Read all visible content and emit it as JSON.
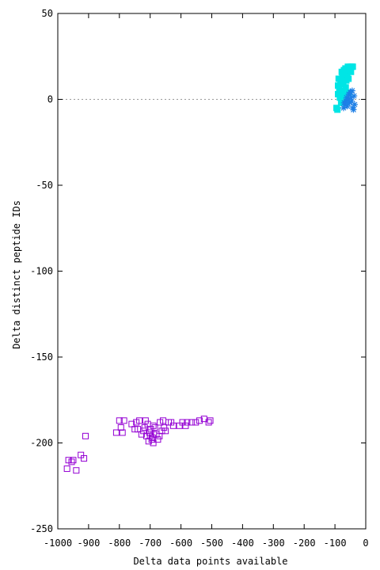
{
  "chart_data": {
    "type": "scatter",
    "title": "",
    "xlabel": "Delta data points available",
    "ylabel": "Delta distinct peptide IDs",
    "xlim": [
      -1000,
      0
    ],
    "ylim": [
      -250,
      50
    ],
    "xticks": [
      -1000,
      -900,
      -800,
      -700,
      -600,
      -500,
      -400,
      -300,
      -200,
      -100,
      0
    ],
    "yticks": [
      -250,
      -200,
      -150,
      -100,
      -50,
      0,
      50
    ],
    "grid": false,
    "zero_line": true,
    "legend": "none",
    "colors": {
      "open_squares": "#9400d3",
      "filled_squares": "#00e5e5",
      "stars": "#1e7fe6",
      "zero_line": "#999999",
      "axes": "#000000"
    },
    "series": [
      {
        "marker": "open-square",
        "points": [
          [
            -970,
            -215
          ],
          [
            -965,
            -210
          ],
          [
            -955,
            -211
          ],
          [
            -950,
            -210
          ],
          [
            -940,
            -216
          ],
          [
            -925,
            -207
          ],
          [
            -915,
            -209
          ],
          [
            -910,
            -196
          ],
          [
            -810,
            -194
          ],
          [
            -800,
            -187
          ],
          [
            -795,
            -191
          ],
          [
            -790,
            -194
          ],
          [
            -785,
            -187
          ],
          [
            -760,
            -189
          ],
          [
            -750,
            -192
          ],
          [
            -745,
            -188
          ],
          [
            -740,
            -192
          ],
          [
            -735,
            -187
          ],
          [
            -728,
            -195
          ],
          [
            -722,
            -193
          ],
          [
            -718,
            -191
          ],
          [
            -712,
            -196
          ],
          [
            -708,
            -189
          ],
          [
            -705,
            -199
          ],
          [
            -702,
            -194
          ],
          [
            -700,
            -196
          ],
          [
            -698,
            -192
          ],
          [
            -695,
            -198
          ],
          [
            -692,
            -197
          ],
          [
            -690,
            -200
          ],
          [
            -688,
            -195
          ],
          [
            -685,
            -191
          ],
          [
            -680,
            -195
          ],
          [
            -675,
            -198
          ],
          [
            -670,
            -196
          ],
          [
            -668,
            -188
          ],
          [
            -662,
            -193
          ],
          [
            -658,
            -187
          ],
          [
            -655,
            -191
          ],
          [
            -650,
            -193
          ],
          [
            -640,
            -188
          ],
          [
            -632,
            -188
          ],
          [
            -625,
            -190
          ],
          [
            -605,
            -190
          ],
          [
            -595,
            -188
          ],
          [
            -585,
            -190
          ],
          [
            -580,
            -188
          ],
          [
            -565,
            -188
          ],
          [
            -552,
            -188
          ],
          [
            -540,
            -187
          ],
          [
            -525,
            -186
          ],
          [
            -510,
            -188
          ],
          [
            -505,
            -187
          ],
          [
            -715,
            -187
          ],
          [
            -690,
            -190
          ]
        ]
      },
      {
        "marker": "filled-square",
        "points": [
          [
            -95,
            -5
          ],
          [
            -92,
            -6
          ],
          [
            -90,
            3
          ],
          [
            -90,
            8
          ],
          [
            -88,
            12
          ],
          [
            -86,
            6
          ],
          [
            -84,
            1
          ],
          [
            -82,
            10
          ],
          [
            -80,
            -2
          ],
          [
            -78,
            16
          ],
          [
            -76,
            13
          ],
          [
            -75,
            5
          ],
          [
            -73,
            9
          ],
          [
            -71,
            17
          ],
          [
            -70,
            2
          ],
          [
            -68,
            14
          ],
          [
            -66,
            18
          ],
          [
            -65,
            7
          ],
          [
            -63,
            11
          ],
          [
            -62,
            -1
          ],
          [
            -60,
            15
          ],
          [
            -58,
            19
          ],
          [
            -56,
            12
          ],
          [
            -55,
            4
          ],
          [
            -52,
            17
          ],
          [
            -50,
            19
          ],
          [
            -48,
            16
          ],
          [
            -45,
            19
          ],
          [
            -42,
            19
          ]
        ]
      },
      {
        "marker": "star",
        "points": [
          [
            -72,
            -5
          ],
          [
            -70,
            -2
          ],
          [
            -67,
            -3
          ],
          [
            -64,
            -1
          ],
          [
            -62,
            1
          ],
          [
            -60,
            -4
          ],
          [
            -57,
            0
          ],
          [
            -55,
            3
          ],
          [
            -53,
            -2
          ],
          [
            -50,
            4
          ],
          [
            -48,
            1
          ],
          [
            -46,
            -1
          ],
          [
            -44,
            5
          ],
          [
            -42,
            -5
          ],
          [
            -40,
            -6
          ],
          [
            -38,
            2
          ],
          [
            -36,
            -3
          ]
        ]
      }
    ]
  }
}
